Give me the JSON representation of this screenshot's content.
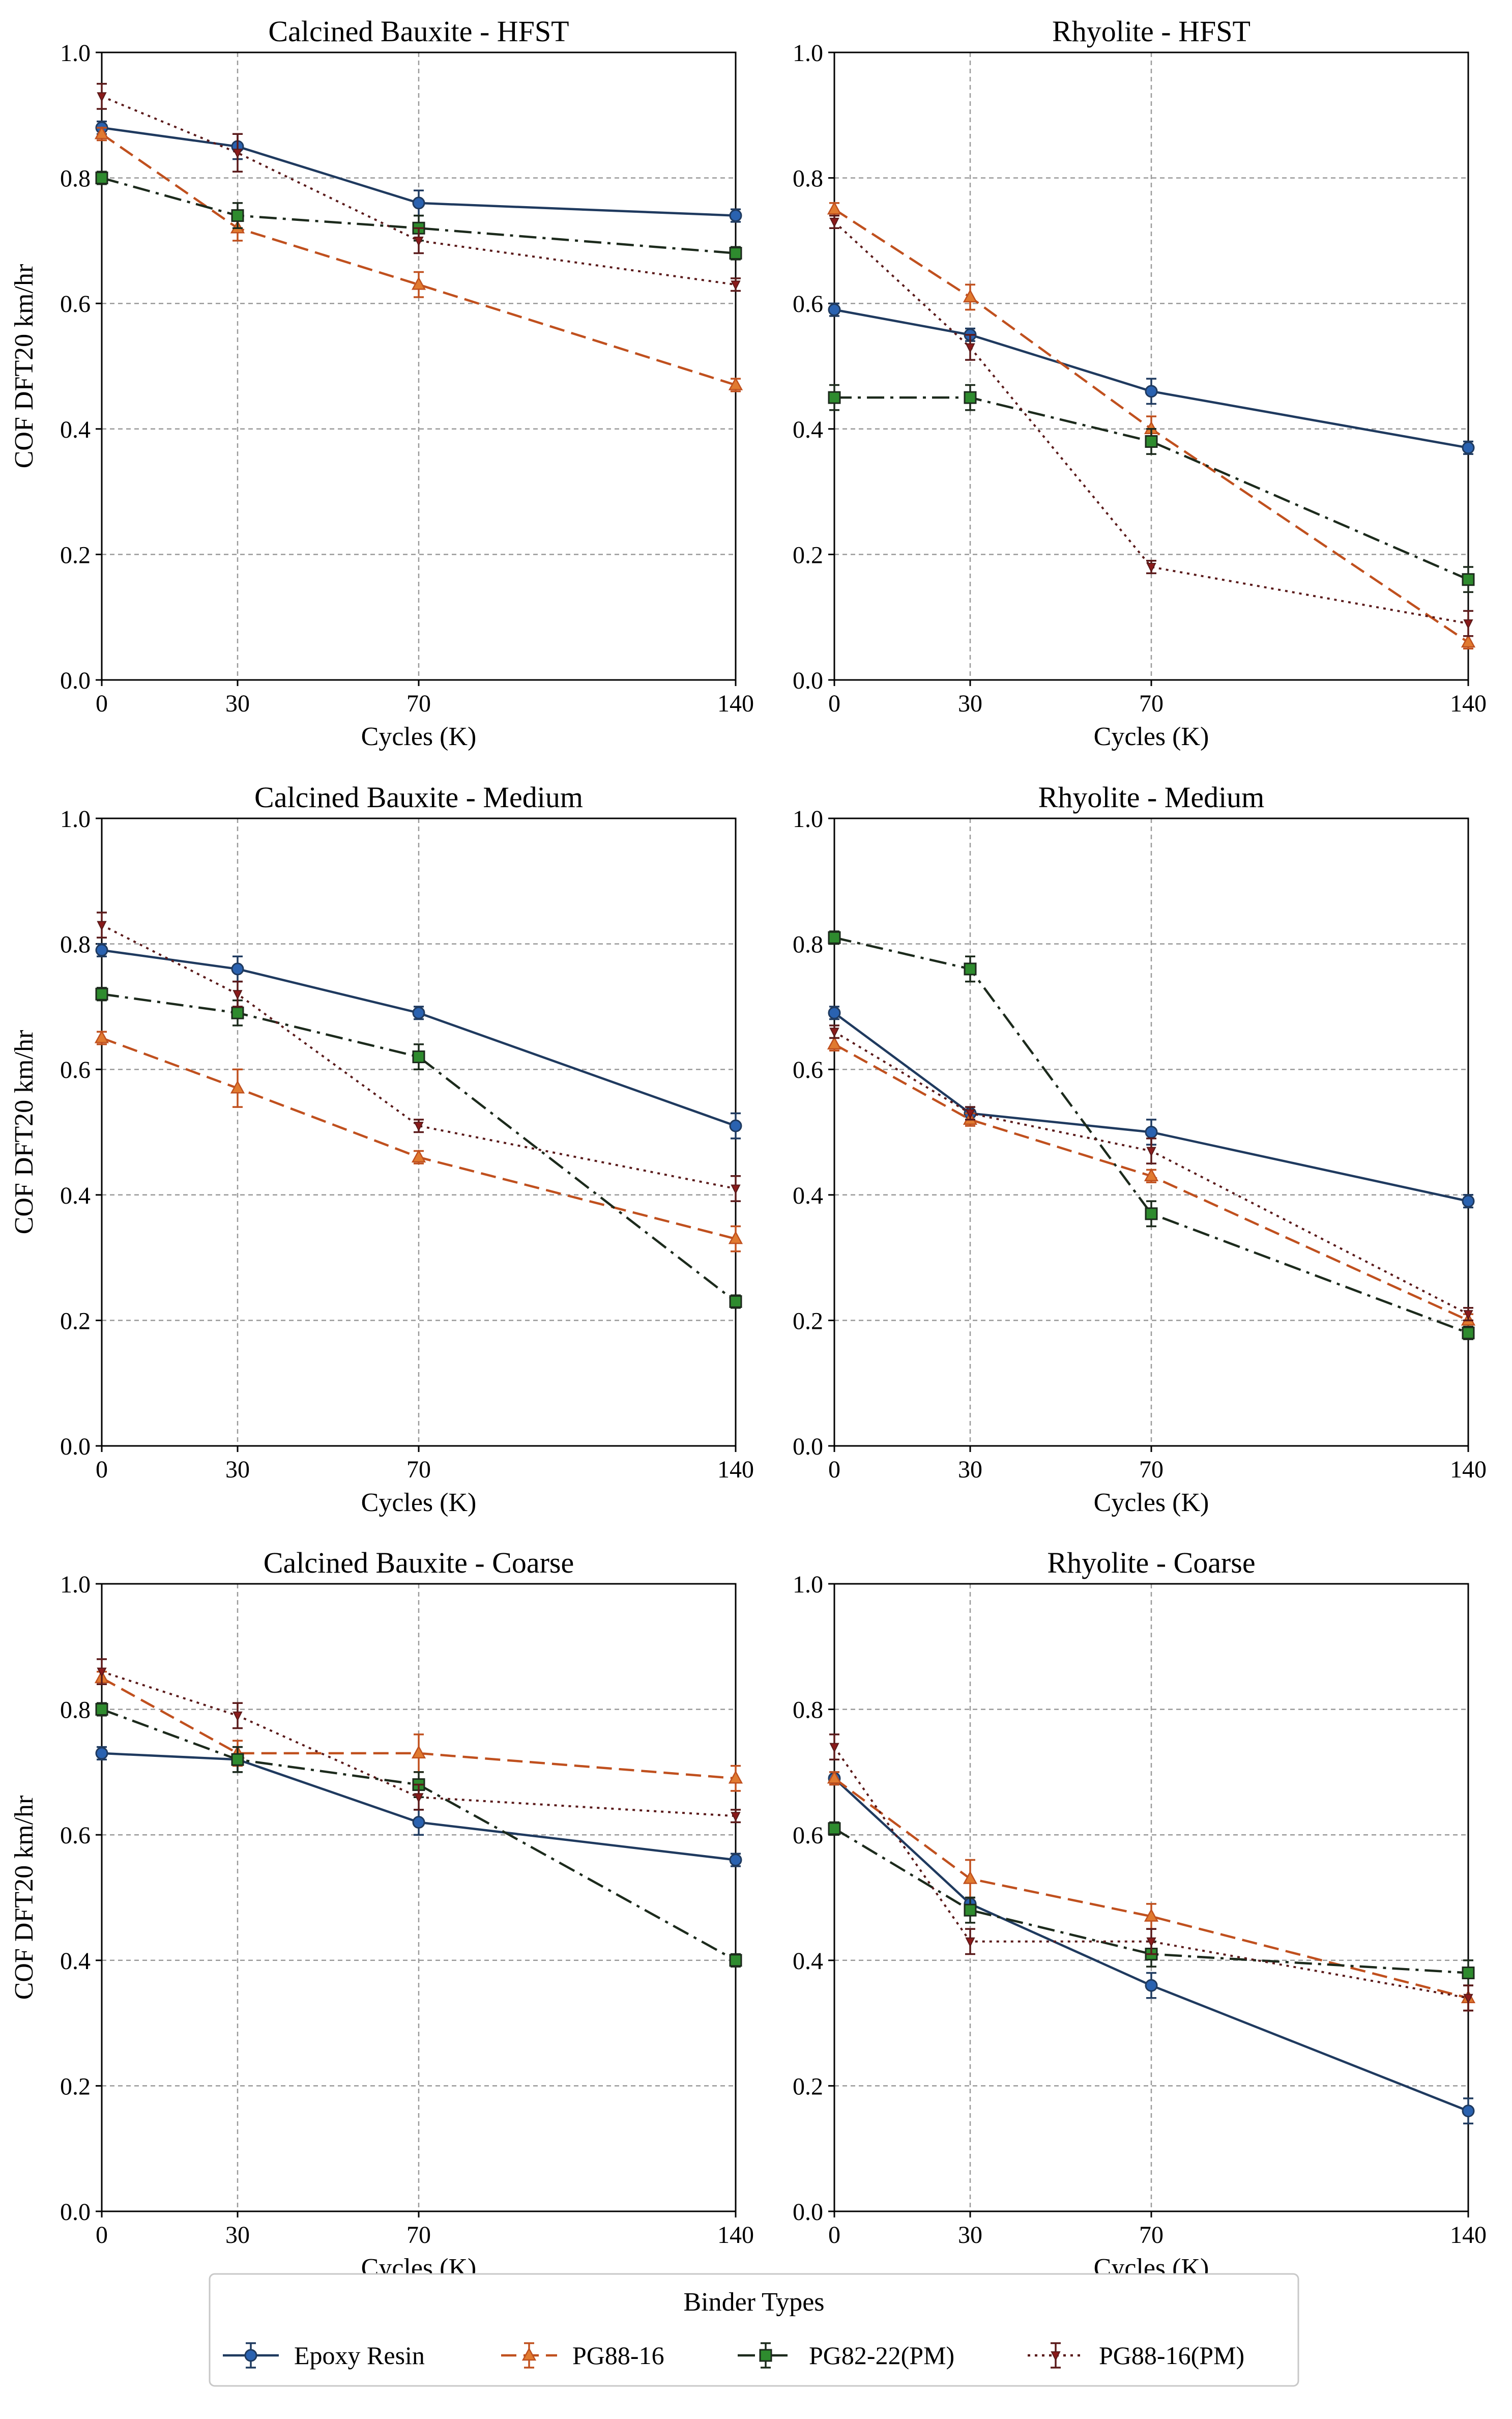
{
  "chart_data": {
    "type": "line",
    "x": [
      0,
      30,
      70,
      140
    ],
    "xticks": [
      "0",
      "30",
      "70",
      "140"
    ],
    "yticks": [
      "0.0",
      "0.2",
      "0.4",
      "0.6",
      "0.8",
      "1.0"
    ],
    "ylim": [
      0,
      1.0
    ],
    "xlim": [
      0,
      140
    ],
    "grid": true,
    "xlabel": "Cycles (K)",
    "ylabel": "COF DFT20 km/hr",
    "legend": {
      "title": "Binder Types",
      "placement": "bottom-center"
    },
    "series_styles": [
      {
        "name": "Epoxy Resin",
        "color": "#1f3a5f",
        "marker_color": "#2a62b0",
        "dash": "solid",
        "marker": "circle"
      },
      {
        "name": "PG88-16",
        "color": "#c0501e",
        "marker_color": "#e07a30",
        "dash": "dashed",
        "marker": "triangle"
      },
      {
        "name": "PG82-22(PM)",
        "color": "#1c2a1c",
        "marker_color": "#2e8b2e",
        "dash": "dashdot",
        "marker": "square"
      },
      {
        "name": "PG88-16(PM)",
        "color": "#5a1a1a",
        "marker_color": "#8b1a1a",
        "dash": "dotted",
        "marker": "tri_down"
      }
    ],
    "panels": [
      {
        "title": "Calcined Bauxite - HFST",
        "series": [
          {
            "name": "Epoxy Resin",
            "values": [
              0.88,
              0.85,
              0.76,
              0.74
            ],
            "errors": [
              0.01,
              0.02,
              0.02,
              0.01
            ]
          },
          {
            "name": "PG88-16",
            "values": [
              0.87,
              0.72,
              0.63,
              0.47
            ],
            "errors": [
              0.01,
              0.02,
              0.02,
              0.01
            ]
          },
          {
            "name": "PG82-22(PM)",
            "values": [
              0.8,
              0.74,
              0.72,
              0.68
            ],
            "errors": [
              0.01,
              0.02,
              0.02,
              0.01
            ]
          },
          {
            "name": "PG88-16(PM)",
            "values": [
              0.93,
              0.84,
              0.7,
              0.63
            ],
            "errors": [
              0.02,
              0.03,
              0.02,
              0.01
            ]
          }
        ]
      },
      {
        "title": "Rhyolite - HFST",
        "series": [
          {
            "name": "Epoxy Resin",
            "values": [
              0.59,
              0.55,
              0.46,
              0.37
            ],
            "errors": [
              0.01,
              0.01,
              0.02,
              0.01
            ]
          },
          {
            "name": "PG88-16",
            "values": [
              0.75,
              0.61,
              0.4,
              0.06
            ],
            "errors": [
              0.01,
              0.02,
              0.02,
              0.01
            ]
          },
          {
            "name": "PG82-22(PM)",
            "values": [
              0.45,
              0.45,
              0.38,
              0.16
            ],
            "errors": [
              0.02,
              0.02,
              0.02,
              0.02
            ]
          },
          {
            "name": "PG88-16(PM)",
            "values": [
              0.73,
              0.53,
              0.18,
              0.09
            ],
            "errors": [
              0.01,
              0.02,
              0.01,
              0.02
            ]
          }
        ]
      },
      {
        "title": "Calcined Bauxite - Medium",
        "series": [
          {
            "name": "Epoxy Resin",
            "values": [
              0.79,
              0.76,
              0.69,
              0.51
            ],
            "errors": [
              0.01,
              0.02,
              0.01,
              0.02
            ]
          },
          {
            "name": "PG88-16",
            "values": [
              0.65,
              0.57,
              0.46,
              0.33
            ],
            "errors": [
              0.01,
              0.03,
              0.01,
              0.02
            ]
          },
          {
            "name": "PG82-22(PM)",
            "values": [
              0.72,
              0.69,
              0.62,
              0.23
            ],
            "errors": [
              0.01,
              0.02,
              0.02,
              0.01
            ]
          },
          {
            "name": "PG88-16(PM)",
            "values": [
              0.83,
              0.72,
              0.51,
              0.41
            ],
            "errors": [
              0.02,
              0.02,
              0.01,
              0.02
            ]
          }
        ]
      },
      {
        "title": "Rhyolite - Medium",
        "series": [
          {
            "name": "Epoxy Resin",
            "values": [
              0.69,
              0.53,
              0.5,
              0.39
            ],
            "errors": [
              0.01,
              0.01,
              0.02,
              0.01
            ]
          },
          {
            "name": "PG88-16",
            "values": [
              0.64,
              0.52,
              0.43,
              0.2
            ],
            "errors": [
              0.01,
              0.01,
              0.01,
              0.01
            ]
          },
          {
            "name": "PG82-22(PM)",
            "values": [
              0.81,
              0.76,
              0.37,
              0.18
            ],
            "errors": [
              0.01,
              0.02,
              0.02,
              0.01
            ]
          },
          {
            "name": "PG88-16(PM)",
            "values": [
              0.66,
              0.53,
              0.47,
              0.21
            ],
            "errors": [
              0.01,
              0.01,
              0.02,
              0.01
            ]
          }
        ]
      },
      {
        "title": "Calcined Bauxite - Coarse",
        "series": [
          {
            "name": "Epoxy Resin",
            "values": [
              0.73,
              0.72,
              0.62,
              0.56
            ],
            "errors": [
              0.01,
              0.02,
              0.02,
              0.01
            ]
          },
          {
            "name": "PG88-16",
            "values": [
              0.85,
              0.73,
              0.73,
              0.69
            ],
            "errors": [
              0.01,
              0.02,
              0.03,
              0.02
            ]
          },
          {
            "name": "PG82-22(PM)",
            "values": [
              0.8,
              0.72,
              0.68,
              0.4
            ],
            "errors": [
              0.01,
              0.02,
              0.02,
              0.01
            ]
          },
          {
            "name": "PG88-16(PM)",
            "values": [
              0.86,
              0.79,
              0.66,
              0.63
            ],
            "errors": [
              0.02,
              0.02,
              0.02,
              0.01
            ]
          }
        ]
      },
      {
        "title": "Rhyolite - Coarse",
        "series": [
          {
            "name": "Epoxy Resin",
            "values": [
              0.69,
              0.49,
              0.36,
              0.16
            ],
            "errors": [
              0.01,
              0.01,
              0.02,
              0.02
            ]
          },
          {
            "name": "PG88-16",
            "values": [
              0.69,
              0.53,
              0.47,
              0.34
            ],
            "errors": [
              0.01,
              0.03,
              0.02,
              0.02
            ]
          },
          {
            "name": "PG82-22(PM)",
            "values": [
              0.61,
              0.48,
              0.41,
              0.38
            ],
            "errors": [
              0.01,
              0.02,
              0.02,
              0.02
            ]
          },
          {
            "name": "PG88-16(PM)",
            "values": [
              0.74,
              0.43,
              0.43,
              0.34
            ],
            "errors": [
              0.02,
              0.02,
              0.02,
              0.02
            ]
          }
        ]
      }
    ]
  }
}
